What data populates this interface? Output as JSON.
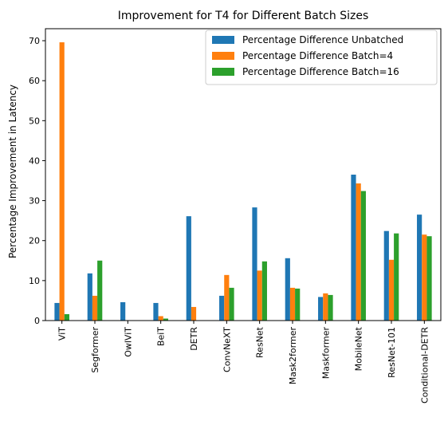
{
  "chart_data": {
    "type": "bar",
    "title": "Improvement for T4 for Different Batch Sizes",
    "xlabel": "",
    "ylabel": "Percentage Improvement in Latency",
    "ylim": [
      0,
      73
    ],
    "yticks": [
      0,
      10,
      20,
      30,
      40,
      50,
      60,
      70
    ],
    "grid": false,
    "legend_position": "top-right",
    "categories": [
      "ViT",
      "Segformer",
      "OwlViT",
      "BeiT",
      "DETR",
      "ConvNeXT",
      "ResNet",
      "Mask2former",
      "Maskformer",
      "MobileNet",
      "ResNet-101",
      "Conditional-DETR"
    ],
    "series": [
      {
        "name": "Percentage Difference Unbatched",
        "color": "#1f77b4",
        "values": [
          4.4,
          11.8,
          4.6,
          4.4,
          26.1,
          6.2,
          28.3,
          15.6,
          5.9,
          36.5,
          22.4,
          26.5
        ]
      },
      {
        "name": "Percentage Difference Batch=4",
        "color": "#ff7f0e",
        "values": [
          69.6,
          6.2,
          0.0,
          1.1,
          3.4,
          11.4,
          12.5,
          8.2,
          6.8,
          34.3,
          15.2,
          21.5
        ]
      },
      {
        "name": "Percentage Difference Batch=16",
        "color": "#2ca02c",
        "values": [
          1.6,
          15.0,
          0.0,
          0.5,
          0.0,
          8.2,
          14.8,
          8.0,
          6.4,
          32.4,
          21.8,
          21.1
        ]
      }
    ]
  }
}
